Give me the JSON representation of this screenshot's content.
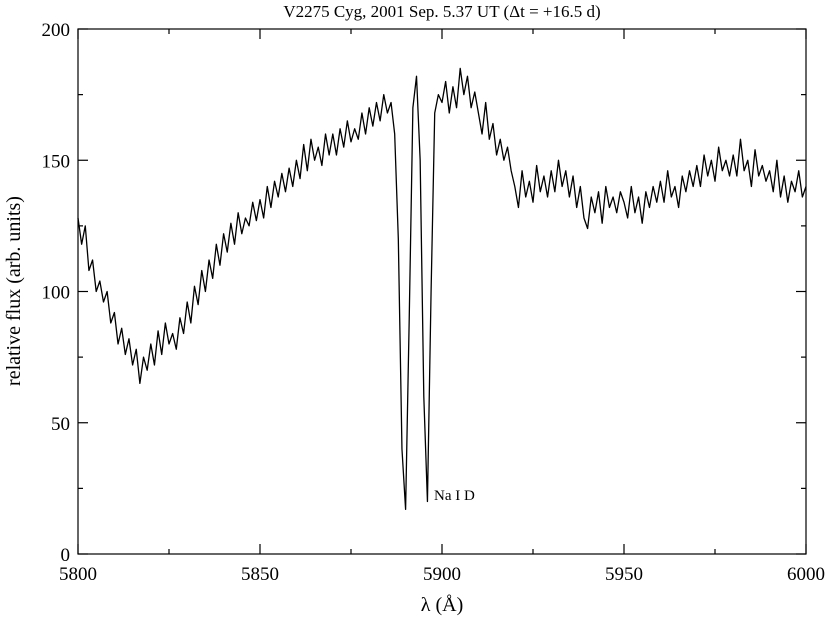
{
  "chart_data": {
    "type": "line",
    "title": "V2275 Cyg, 2001 Sep. 5.37 UT (Δt = +16.5 d)",
    "x_label": "λ (Å)",
    "y_label": "relative flux (arb. units)",
    "annotations": [
      {
        "text": "Na I D"
      }
    ],
    "xlim": [
      5800,
      6000
    ],
    "xticks": [
      5800,
      5850,
      5900,
      5950,
      6000
    ],
    "minor_xticks": [
      5825,
      5875,
      5925,
      5975
    ],
    "ylim": [
      0,
      200
    ],
    "yticks": [
      0,
      50,
      100,
      150,
      200
    ],
    "minor_yticks": [
      25,
      75,
      125,
      175
    ],
    "grid": false,
    "x": [
      5800,
      5801,
      5802,
      5803,
      5804,
      5805,
      5806,
      5807,
      5808,
      5809,
      5810,
      5811,
      5812,
      5813,
      5814,
      5815,
      5816,
      5817,
      5818,
      5819,
      5820,
      5821,
      5822,
      5823,
      5824,
      5825,
      5826,
      5827,
      5828,
      5829,
      5830,
      5831,
      5832,
      5833,
      5834,
      5835,
      5836,
      5837,
      5838,
      5839,
      5840,
      5841,
      5842,
      5843,
      5844,
      5845,
      5846,
      5847,
      5848,
      5849,
      5850,
      5851,
      5852,
      5853,
      5854,
      5855,
      5856,
      5857,
      5858,
      5859,
      5860,
      5861,
      5862,
      5863,
      5864,
      5865,
      5866,
      5867,
      5868,
      5869,
      5870,
      5871,
      5872,
      5873,
      5874,
      5875,
      5876,
      5877,
      5878,
      5879,
      5880,
      5881,
      5882,
      5883,
      5884,
      5885,
      5886,
      5887,
      5888,
      5889,
      5890,
      5891,
      5892,
      5893,
      5894,
      5895,
      5896,
      5897,
      5898,
      5899,
      5900,
      5901,
      5902,
      5903,
      5904,
      5905,
      5906,
      5907,
      5908,
      5909,
      5910,
      5911,
      5912,
      5913,
      5914,
      5915,
      5916,
      5917,
      5918,
      5919,
      5920,
      5921,
      5922,
      5923,
      5924,
      5925,
      5926,
      5927,
      5928,
      5929,
      5930,
      5931,
      5932,
      5933,
      5934,
      5935,
      5936,
      5937,
      5938,
      5939,
      5940,
      5941,
      5942,
      5943,
      5944,
      5945,
      5946,
      5947,
      5948,
      5949,
      5950,
      5951,
      5952,
      5953,
      5954,
      5955,
      5956,
      5957,
      5958,
      5959,
      5960,
      5961,
      5962,
      5963,
      5964,
      5965,
      5966,
      5967,
      5968,
      5969,
      5970,
      5971,
      5972,
      5973,
      5974,
      5975,
      5976,
      5977,
      5978,
      5979,
      5980,
      5981,
      5982,
      5983,
      5984,
      5985,
      5986,
      5987,
      5988,
      5989,
      5990,
      5991,
      5992,
      5993,
      5994,
      5995,
      5996,
      5997,
      5998,
      5999,
      6000
    ],
    "series": [
      {
        "name": "V2275 Cyg",
        "color": "#000000",
        "values": [
          128,
          118,
          125,
          108,
          112,
          100,
          104,
          96,
          100,
          88,
          92,
          80,
          86,
          76,
          82,
          72,
          78,
          65,
          75,
          70,
          80,
          72,
          85,
          76,
          88,
          80,
          84,
          78,
          90,
          84,
          96,
          88,
          102,
          95,
          108,
          100,
          112,
          105,
          118,
          110,
          122,
          115,
          126,
          118,
          130,
          122,
          128,
          125,
          134,
          127,
          135,
          128,
          140,
          132,
          142,
          136,
          145,
          138,
          147,
          140,
          150,
          143,
          156,
          146,
          158,
          150,
          155,
          148,
          160,
          152,
          160,
          152,
          162,
          155,
          165,
          157,
          162,
          158,
          168,
          160,
          170,
          163,
          172,
          165,
          175,
          168,
          172,
          160,
          120,
          40,
          17,
          90,
          170,
          182,
          150,
          60,
          20,
          100,
          168,
          175,
          172,
          180,
          168,
          178,
          170,
          185,
          175,
          182,
          170,
          176,
          168,
          160,
          172,
          158,
          164,
          152,
          158,
          150,
          155,
          146,
          140,
          132,
          146,
          136,
          142,
          134,
          148,
          138,
          144,
          136,
          146,
          138,
          150,
          140,
          146,
          136,
          144,
          132,
          140,
          128,
          124,
          136,
          130,
          138,
          126,
          140,
          132,
          136,
          130,
          138,
          134,
          128,
          140,
          130,
          136,
          126,
          138,
          132,
          140,
          134,
          142,
          134,
          146,
          136,
          140,
          132,
          144,
          138,
          146,
          140,
          148,
          140,
          152,
          144,
          150,
          142,
          155,
          146,
          150,
          144,
          152,
          144,
          158,
          146,
          150,
          140,
          154,
          144,
          148,
          142,
          146,
          138,
          150,
          136,
          144,
          134,
          142,
          138,
          146,
          136,
          140
        ]
      }
    ]
  }
}
